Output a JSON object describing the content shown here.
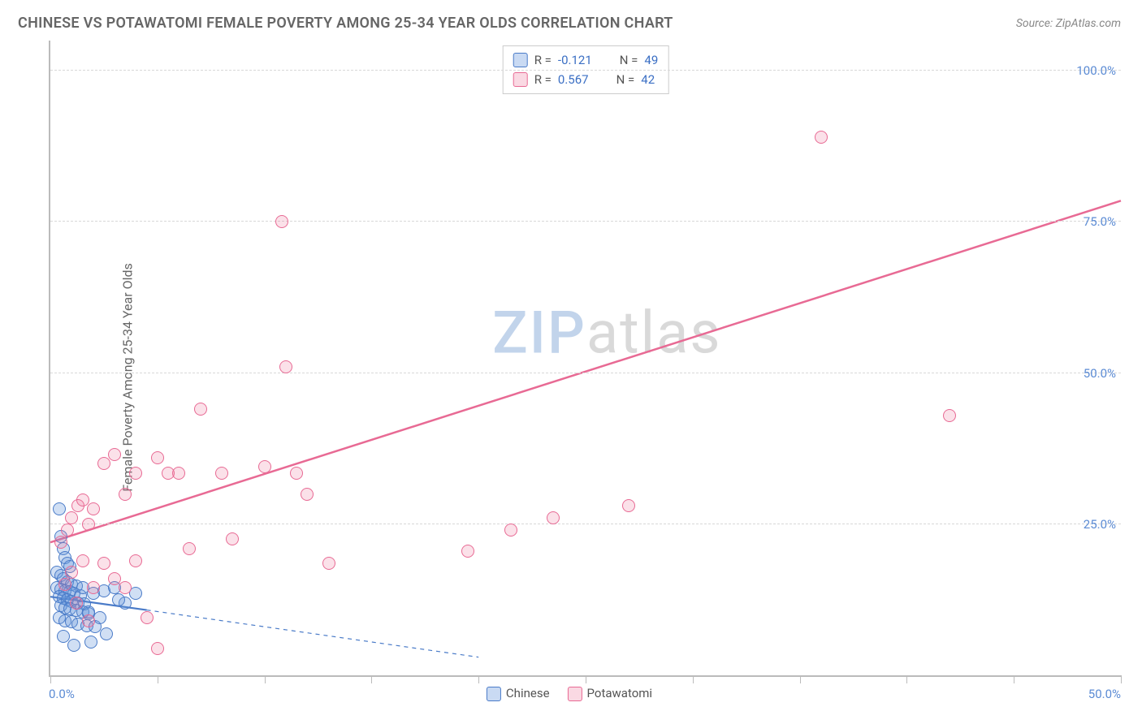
{
  "title": "CHINESE VS POTAWATOMI FEMALE POVERTY AMONG 25-34 YEAR OLDS CORRELATION CHART",
  "source_label": "Source: ",
  "source_name": "ZipAtlas.com",
  "ylabel": "Female Poverty Among 25-34 Year Olds",
  "watermark_a": "ZIP",
  "watermark_b": "atlas",
  "chart": {
    "type": "scatter",
    "background_color": "#ffffff",
    "grid_color": "#d8d8d8",
    "axis_color": "#bbbbbb",
    "xlim": [
      0,
      50
    ],
    "ylim": [
      0,
      105
    ],
    "x_ticks": [
      0,
      5,
      10,
      15,
      20,
      25,
      30,
      35,
      40,
      45,
      50
    ],
    "x_tick_labels": {
      "0": "0.0%",
      "50": "50.0%"
    },
    "y_gridlines": [
      25,
      50,
      75,
      100
    ],
    "y_tick_labels": {
      "25": "25.0%",
      "50": "50.0%",
      "75": "75.0%",
      "100": "100.0%"
    },
    "tick_label_color": "#5b8bd4",
    "tick_label_fontsize": 15,
    "marker_radius": 8,
    "marker_fill_opacity_a": 0.3,
    "marker_fill_opacity_b": 0.22,
    "series": [
      {
        "key": "a",
        "name": "Chinese",
        "color": "#4a7bc8",
        "fill": "rgba(100,150,220,0.30)",
        "R": "-0.121",
        "N": "49",
        "trend": {
          "x1": 0,
          "y1": 13.0,
          "x2": 4.5,
          "y2": 10.8,
          "dash_x2": 20,
          "dash_y2": 3.0,
          "width": 2.2
        },
        "points": [
          [
            0.4,
            27.5
          ],
          [
            0.5,
            23
          ],
          [
            0.6,
            21
          ],
          [
            0.7,
            19.5
          ],
          [
            0.8,
            18.5
          ],
          [
            0.9,
            18
          ],
          [
            0.3,
            17
          ],
          [
            0.5,
            16.5
          ],
          [
            0.6,
            16
          ],
          [
            0.8,
            15.5
          ],
          [
            1.0,
            15
          ],
          [
            1.2,
            14.8
          ],
          [
            0.3,
            14.5
          ],
          [
            0.5,
            14.2
          ],
          [
            0.7,
            14
          ],
          [
            0.9,
            13.8
          ],
          [
            1.1,
            13.5
          ],
          [
            1.4,
            13.2
          ],
          [
            0.4,
            13
          ],
          [
            0.6,
            12.8
          ],
          [
            0.8,
            12.5
          ],
          [
            1.0,
            12.2
          ],
          [
            1.3,
            12
          ],
          [
            1.6,
            11.8
          ],
          [
            0.5,
            11.5
          ],
          [
            0.7,
            11.2
          ],
          [
            0.9,
            11
          ],
          [
            1.2,
            10.8
          ],
          [
            1.5,
            10.5
          ],
          [
            1.8,
            10.2
          ],
          [
            0.4,
            9.5
          ],
          [
            0.7,
            9
          ],
          [
            1.0,
            8.8
          ],
          [
            1.3,
            8.5
          ],
          [
            1.7,
            8.2
          ],
          [
            2.1,
            8
          ],
          [
            1.5,
            14.5
          ],
          [
            2.0,
            13.5
          ],
          [
            2.5,
            14
          ],
          [
            3.0,
            14.5
          ],
          [
            3.5,
            12
          ],
          [
            4.0,
            13.5
          ],
          [
            1.8,
            10.5
          ],
          [
            2.3,
            9.5
          ],
          [
            0.6,
            6.5
          ],
          [
            1.1,
            5
          ],
          [
            1.9,
            5.5
          ],
          [
            2.6,
            6.8
          ],
          [
            3.2,
            12.5
          ]
        ]
      },
      {
        "key": "b",
        "name": "Potawatomi",
        "color": "#e86a94",
        "fill": "rgba(236,120,155,0.22)",
        "R": "0.567",
        "N": "42",
        "trend": {
          "x1": 0,
          "y1": 22.0,
          "x2": 50,
          "y2": 78.5,
          "width": 2.5
        },
        "points": [
          [
            0.5,
            22
          ],
          [
            0.8,
            24
          ],
          [
            1.0,
            26
          ],
          [
            1.3,
            28
          ],
          [
            1.5,
            29
          ],
          [
            1.8,
            25
          ],
          [
            2.0,
            27.5
          ],
          [
            2.5,
            35
          ],
          [
            3.0,
            36.5
          ],
          [
            3.5,
            30
          ],
          [
            4.0,
            33.5
          ],
          [
            5.0,
            36
          ],
          [
            5.5,
            33.5
          ],
          [
            6.0,
            33.5
          ],
          [
            6.5,
            21
          ],
          [
            7.0,
            44
          ],
          [
            8.0,
            33.5
          ],
          [
            8.5,
            22.5
          ],
          [
            10.0,
            34.5
          ],
          [
            10.8,
            75
          ],
          [
            11.0,
            51
          ],
          [
            11.5,
            33.5
          ],
          [
            12.0,
            30
          ],
          [
            13.0,
            18.5
          ],
          [
            19.5,
            20.5
          ],
          [
            21.5,
            24
          ],
          [
            23.5,
            26
          ],
          [
            27.0,
            28
          ],
          [
            36.0,
            89
          ],
          [
            42.0,
            43
          ],
          [
            1.0,
            17
          ],
          [
            1.5,
            19
          ],
          [
            2.0,
            14.5
          ],
          [
            2.5,
            18.5
          ],
          [
            3.0,
            16
          ],
          [
            3.5,
            14.5
          ],
          [
            4.0,
            19
          ],
          [
            4.5,
            9.5
          ],
          [
            5.0,
            4.5
          ],
          [
            1.2,
            12
          ],
          [
            1.8,
            9
          ],
          [
            0.7,
            15
          ]
        ]
      }
    ],
    "legend_top": {
      "R_label": "R =",
      "N_label": "N ="
    },
    "legend_bottom_labels": [
      "Chinese",
      "Potawatomi"
    ]
  }
}
